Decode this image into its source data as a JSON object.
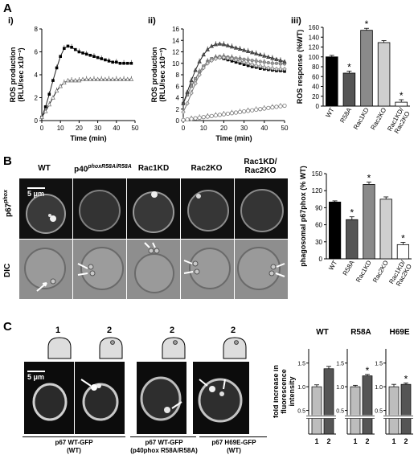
{
  "panel_A": {
    "letter": "A",
    "sub_i": "i)",
    "sub_ii": "ii)",
    "sub_iii": "iii)",
    "y_label_line1": "ROS production",
    "y_label_line2": "(RLU/sec x10⁻³)",
    "x_label": "Time (min)",
    "y_label_iii": "ROS response  (%WT)"
  },
  "panel_B": {
    "letter": "B",
    "columns": [
      "WT",
      "p40phoxR58A/R58A",
      "Rac1KD",
      "Rac2KO",
      "Rac1KD/\nRac2KO"
    ],
    "col_wt": "WT",
    "col_p40_main": "p40",
    "col_p40_sup": "phoxR58A/R58A",
    "col_rac1": "Rac1KD",
    "col_rac2": "Rac2KO",
    "col_dko_1": "Rac1KD/",
    "col_dko_2": "Rac2KO",
    "row_top_main": "p67",
    "row_top_sup": "phox",
    "row_bottom": "DIC",
    "scale_bar": "5 μm",
    "y_label": "phagosomal p67phox (% WT)"
  },
  "panel_C": {
    "letter": "C",
    "scale_bar": "5 μm",
    "stage_labels": [
      "1",
      "2",
      "2",
      "2"
    ],
    "caption_1_l1": "p67 WT-GFP",
    "caption_1_l2": "(WT)",
    "caption_2_l1": "p67 WT-GFP",
    "caption_2_l2": "(p40phox R58A/R58A)",
    "caption_3_l1": "p67 H69E-GFP",
    "caption_3_l2": "(WT)",
    "y_label_l1": "fold increase in",
    "y_label_l2": "fluorescence",
    "y_label_l3": "intensity"
  },
  "colors": {
    "wt": "#000000",
    "r58a": "#555555",
    "rac1kd": "#8a8a8a",
    "rac2ko": "#cfcfcf",
    "dko": "#ffffff",
    "bar2": "#555555",
    "bar1": "#bdbdbd"
  },
  "chart_data": [
    {
      "id": "A-i",
      "type": "line",
      "xlabel": "Time (min)",
      "ylabel": "ROS production (RLU/sec x10⁻³)",
      "xlim": [
        0,
        50
      ],
      "ylim": [
        0,
        8
      ],
      "xticks": [
        0,
        10,
        20,
        30,
        40,
        50
      ],
      "yticks": [
        0,
        2,
        4,
        6,
        8
      ],
      "series": [
        {
          "marker": "filled-square",
          "x": [
            0,
            2,
            4,
            6,
            8,
            10,
            12,
            14,
            16,
            18,
            20,
            22,
            24,
            26,
            28,
            30,
            32,
            34,
            36,
            38,
            40,
            42,
            44,
            46,
            48
          ],
          "y": [
            0.3,
            1.2,
            2.3,
            3.5,
            4.6,
            5.6,
            6.3,
            6.5,
            6.4,
            6.2,
            6.0,
            5.9,
            5.8,
            5.7,
            5.6,
            5.5,
            5.4,
            5.3,
            5.2,
            5.1,
            5.1,
            5.0,
            5.0,
            5.0,
            5.0
          ]
        },
        {
          "marker": "open-triangle",
          "x": [
            0,
            2,
            4,
            6,
            8,
            10,
            12,
            14,
            16,
            18,
            20,
            22,
            24,
            26,
            28,
            30,
            32,
            34,
            36,
            38,
            40,
            42,
            44,
            46,
            48
          ],
          "y": [
            0.3,
            0.8,
            1.4,
            2.0,
            2.6,
            3.0,
            3.3,
            3.5,
            3.5,
            3.5,
            3.5,
            3.6,
            3.6,
            3.6,
            3.6,
            3.6,
            3.6,
            3.6,
            3.6,
            3.6,
            3.6,
            3.6,
            3.6,
            3.6,
            3.6
          ]
        }
      ]
    },
    {
      "id": "A-ii",
      "type": "line",
      "xlabel": "Time (min)",
      "ylabel": "ROS production (RLU/sec x10⁻³)",
      "xlim": [
        0,
        50
      ],
      "ylim": [
        0,
        16
      ],
      "xticks": [
        0,
        10,
        20,
        30,
        40,
        50
      ],
      "yticks": [
        0,
        2,
        4,
        6,
        8,
        10,
        12,
        14,
        16
      ],
      "series": [
        {
          "marker": "filled-square",
          "x": [
            0,
            2,
            4,
            6,
            8,
            10,
            12,
            14,
            16,
            18,
            20,
            22,
            24,
            26,
            28,
            30,
            32,
            34,
            36,
            38,
            40,
            42,
            44,
            46,
            48,
            50
          ],
          "y": [
            3.0,
            4.5,
            6.0,
            7.3,
            8.5,
            9.5,
            10.3,
            10.8,
            11.0,
            11.0,
            10.8,
            10.6,
            10.4,
            10.2,
            10.0,
            9.8,
            9.6,
            9.4,
            9.3,
            9.1,
            9.0,
            8.9,
            8.8,
            8.7,
            8.7,
            8.6
          ]
        },
        {
          "marker": "gray-circle",
          "x": [
            0,
            2,
            4,
            6,
            8,
            10,
            12,
            14,
            16,
            18,
            20,
            22,
            24,
            26,
            28,
            30,
            32,
            34,
            36,
            38,
            40,
            42,
            44,
            46,
            48,
            50
          ],
          "y": [
            3.0,
            4.5,
            6.0,
            7.3,
            8.5,
            9.5,
            10.3,
            10.8,
            11.0,
            11.2,
            11.2,
            11.1,
            11.0,
            10.9,
            10.8,
            10.7,
            10.6,
            10.5,
            10.4,
            10.3,
            10.2,
            10.1,
            10.0,
            10.0,
            9.9,
            9.9
          ]
        },
        {
          "marker": "dark-triangle",
          "x": [
            0,
            2,
            4,
            6,
            8,
            10,
            12,
            14,
            16,
            18,
            20,
            22,
            24,
            26,
            28,
            30,
            32,
            34,
            36,
            38,
            40,
            42,
            44,
            46,
            48,
            50
          ],
          "y": [
            3.0,
            5.0,
            7.0,
            8.8,
            10.3,
            11.5,
            12.4,
            13.0,
            13.3,
            13.4,
            13.3,
            13.1,
            12.9,
            12.7,
            12.5,
            12.3,
            12.1,
            11.9,
            11.7,
            11.5,
            11.3,
            11.1,
            10.9,
            10.7,
            10.5,
            10.3
          ]
        },
        {
          "marker": "open-diamond",
          "x": [
            0,
            2,
            4,
            6,
            8,
            10,
            12,
            14,
            16,
            18,
            20,
            22,
            24,
            26,
            28,
            30,
            32,
            34,
            36,
            38,
            40,
            42,
            44,
            46,
            48,
            50
          ],
          "y": [
            1.5,
            3.0,
            4.8,
            6.5,
            8.0,
            9.2,
            10.0,
            10.5,
            10.8,
            11.0,
            11.0,
            10.9,
            10.8,
            10.6,
            10.4,
            10.2,
            10.0,
            9.8,
            9.6,
            9.5,
            9.3,
            9.2,
            9.1,
            9.0,
            9.0,
            9.0
          ]
        },
        {
          "marker": "open-circle",
          "x": [
            0,
            2,
            4,
            6,
            8,
            10,
            12,
            14,
            16,
            18,
            20,
            22,
            24,
            26,
            28,
            30,
            32,
            34,
            36,
            38,
            40,
            42,
            44,
            46,
            48,
            50
          ],
          "y": [
            0.1,
            0.2,
            0.3,
            0.4,
            0.5,
            0.6,
            0.7,
            0.8,
            0.9,
            1.0,
            1.1,
            1.2,
            1.3,
            1.4,
            1.5,
            1.6,
            1.7,
            1.8,
            1.9,
            2.0,
            2.1,
            2.2,
            2.3,
            2.4,
            2.5,
            2.6
          ]
        }
      ]
    },
    {
      "id": "A-iii",
      "type": "bar",
      "ylabel": "ROS response  (%WT)",
      "ylim": [
        0,
        160
      ],
      "yticks": [
        0,
        20,
        40,
        60,
        80,
        100,
        120,
        140,
        160
      ],
      "categories": [
        "WT",
        "R58A",
        "Rac1KD",
        "Rac2KO",
        "Rac1KD/\nRac2KO"
      ],
      "values": [
        100,
        67,
        154,
        129,
        8
      ],
      "errors": [
        3,
        4,
        4,
        4,
        5
      ],
      "significant": [
        false,
        true,
        true,
        false,
        true
      ]
    },
    {
      "id": "B",
      "type": "bar",
      "ylabel": "phagosomal p67phox (% WT)",
      "ylim": [
        0,
        150
      ],
      "yticks": [
        0,
        30,
        60,
        90,
        120,
        150
      ],
      "categories": [
        "WT",
        "R58A",
        "Rac1KD",
        "Rac2KO",
        "Rac1KD/\nRac2KO"
      ],
      "values": [
        100,
        69,
        131,
        105,
        25
      ],
      "errors": [
        2,
        5,
        4,
        4,
        4
      ],
      "significant": [
        false,
        true,
        true,
        false,
        true
      ]
    },
    {
      "id": "C-WT",
      "type": "bar",
      "title": "WT",
      "ylabel": "fold increase in fluorescence intensity",
      "ylim": [
        0,
        1.8
      ],
      "yticks": [
        0.5,
        1.0,
        1.5
      ],
      "break_below": 0.5,
      "categories": [
        "1",
        "2"
      ],
      "values": [
        1.0,
        1.38
      ],
      "errors": [
        0.04,
        0.05
      ],
      "significant": [
        false,
        false
      ]
    },
    {
      "id": "C-R58A",
      "type": "bar",
      "title": "R58A",
      "ylim": [
        0,
        1.8
      ],
      "yticks": [
        0.5,
        1.0,
        1.5
      ],
      "break_below": 0.5,
      "categories": [
        "1",
        "2"
      ],
      "values": [
        1.0,
        1.23
      ],
      "errors": [
        0.03,
        0.03
      ],
      "significant": [
        false,
        true
      ]
    },
    {
      "id": "C-H69E",
      "type": "bar",
      "title": "H69E",
      "ylim": [
        0,
        1.8
      ],
      "yticks": [
        0.5,
        1.0,
        1.5
      ],
      "break_below": 0.5,
      "categories": [
        "1",
        "2"
      ],
      "values": [
        1.0,
        1.05
      ],
      "errors": [
        0.05,
        0.03
      ],
      "significant": [
        false,
        true
      ]
    }
  ]
}
